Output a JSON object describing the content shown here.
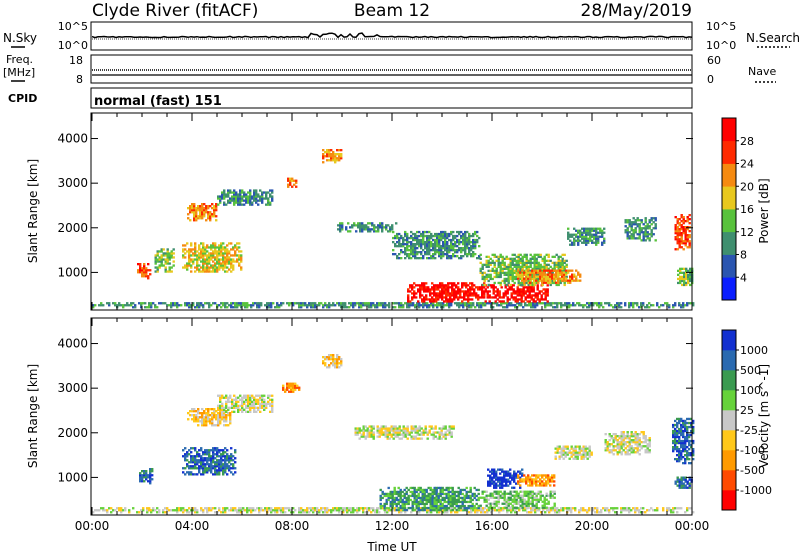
{
  "header": {
    "station": "Clyde River (fitACF)",
    "beam": "Beam 12",
    "date": "28/May/2019"
  },
  "strip_labels": {
    "nsky": "N.Sky",
    "nsearch": "N.Search",
    "freq_line1": "Freq.",
    "freq_line2": "[MHz]",
    "nave": "Nave",
    "cpid": "CPID",
    "cpid_value": "normal (fast) 151"
  },
  "strip_ticks": {
    "noise_left": [
      "10^5",
      "10^0"
    ],
    "noise_right": [
      "10^5",
      "10^0"
    ],
    "freq_left": [
      "18",
      "8"
    ],
    "nave_right": [
      "60",
      "0"
    ]
  },
  "colors": {
    "power_scale": [
      "#0a1eff",
      "#2a55b0",
      "#3f8f6f",
      "#58c23c",
      "#e8c81e",
      "#f58a10",
      "#ff2a00",
      "#ff0000"
    ],
    "velocity_scale": [
      "#ff0000",
      "#ff4a00",
      "#ff9a00",
      "#ffc81a",
      "#c8c8c8",
      "#66d23a",
      "#3a9a50",
      "#2a6ab0",
      "#1230d0"
    ],
    "ground_scatter": "#c0c0c0"
  },
  "chart_data": [
    {
      "type": "heatmap",
      "name": "power",
      "ylabel": "Slant Range [km]",
      "colorbar_label": "Power [dB]",
      "colorbar_ticks": [
        "4",
        "8",
        "12",
        "16",
        "20",
        "24",
        "28"
      ],
      "x_range_hours": [
        0,
        24
      ],
      "ylim": [
        180,
        4550
      ],
      "y_ticks": [
        "1000",
        "2000",
        "3000",
        "4000"
      ],
      "blobs": [
        {
          "t0": 0.0,
          "t1": 24.0,
          "r0": 200,
          "r1": 330,
          "level": 2
        },
        {
          "t0": 1.8,
          "t1": 2.3,
          "r0": 850,
          "r1": 1200,
          "level": 6
        },
        {
          "t0": 2.5,
          "t1": 3.3,
          "r0": 1000,
          "r1": 1500,
          "level": 3
        },
        {
          "t0": 3.6,
          "t1": 6.0,
          "r0": 1000,
          "r1": 1650,
          "level": 4
        },
        {
          "t0": 3.8,
          "t1": 5.0,
          "r0": 2150,
          "r1": 2550,
          "level": 5
        },
        {
          "t0": 5.0,
          "t1": 7.2,
          "r0": 2500,
          "r1": 2850,
          "level": 2
        },
        {
          "t0": 7.8,
          "t1": 8.2,
          "r0": 2900,
          "r1": 3100,
          "level": 5
        },
        {
          "t0": 9.2,
          "t1": 10.0,
          "r0": 3450,
          "r1": 3750,
          "level": 5
        },
        {
          "t0": 9.8,
          "t1": 12.2,
          "r0": 1900,
          "r1": 2100,
          "level": 2
        },
        {
          "t0": 12.0,
          "t1": 15.5,
          "r0": 1300,
          "r1": 1900,
          "level": 2
        },
        {
          "t0": 12.6,
          "t1": 15.7,
          "r0": 330,
          "r1": 750,
          "level": 7
        },
        {
          "t0": 15.7,
          "t1": 18.2,
          "r0": 330,
          "r1": 700,
          "level": 7
        },
        {
          "t0": 15.5,
          "t1": 19.0,
          "r0": 700,
          "r1": 1400,
          "level": 3
        },
        {
          "t0": 17.0,
          "t1": 19.5,
          "r0": 750,
          "r1": 1050,
          "level": 5
        },
        {
          "t0": 19.0,
          "t1": 20.5,
          "r0": 1600,
          "r1": 2000,
          "level": 2
        },
        {
          "t0": 21.3,
          "t1": 22.5,
          "r0": 1700,
          "r1": 2200,
          "level": 2
        },
        {
          "t0": 23.3,
          "t1": 23.9,
          "r0": 1500,
          "r1": 2300,
          "level": 6
        },
        {
          "t0": 23.4,
          "t1": 24.0,
          "r0": 700,
          "r1": 1100,
          "level": 3
        }
      ]
    },
    {
      "type": "heatmap",
      "name": "velocity",
      "ylabel": "Slant Range [km]",
      "colorbar_label": "Velocity [m s^-1]",
      "colorbar_ticks": [
        "-1000",
        "-500",
        "-100",
        "-25",
        "25",
        "100",
        "500",
        "1000"
      ],
      "x_range_hours": [
        0,
        24
      ],
      "xlabel": "Time UT",
      "x_ticks": [
        "00:00",
        "04:00",
        "08:00",
        "12:00",
        "16:00",
        "20:00",
        "00:00"
      ],
      "ylim": [
        180,
        4550
      ],
      "y_ticks": [
        "1000",
        "2000",
        "3000",
        "4000"
      ],
      "blobs": [
        {
          "t0": 0.0,
          "t1": 24.0,
          "r0": 200,
          "r1": 330,
          "level": 4
        },
        {
          "t0": 1.8,
          "t1": 2.4,
          "r0": 850,
          "r1": 1200,
          "level": 7
        },
        {
          "t0": 3.6,
          "t1": 5.7,
          "r0": 1050,
          "r1": 1650,
          "level": 7
        },
        {
          "t0": 3.8,
          "t1": 5.5,
          "r0": 2150,
          "r1": 2550,
          "level": 3
        },
        {
          "t0": 5.0,
          "t1": 7.2,
          "r0": 2450,
          "r1": 2850,
          "level": 4
        },
        {
          "t0": 7.6,
          "t1": 8.3,
          "r0": 2900,
          "r1": 3100,
          "level": 2
        },
        {
          "t0": 9.2,
          "t1": 10.0,
          "r0": 3450,
          "r1": 3750,
          "level": 3
        },
        {
          "t0": 10.5,
          "t1": 14.5,
          "r0": 1850,
          "r1": 2150,
          "level": 4
        },
        {
          "t0": 11.5,
          "t1": 15.5,
          "r0": 250,
          "r1": 750,
          "level": 6
        },
        {
          "t0": 15.5,
          "t1": 18.5,
          "r0": 300,
          "r1": 700,
          "level": 5
        },
        {
          "t0": 15.8,
          "t1": 17.2,
          "r0": 750,
          "r1": 1200,
          "level": 8
        },
        {
          "t0": 17.0,
          "t1": 18.5,
          "r0": 800,
          "r1": 1050,
          "level": 2
        },
        {
          "t0": 18.5,
          "t1": 20.0,
          "r0": 1400,
          "r1": 1700,
          "level": 4
        },
        {
          "t0": 20.5,
          "t1": 22.3,
          "r0": 1500,
          "r1": 2000,
          "level": 4
        },
        {
          "t0": 23.2,
          "t1": 24.0,
          "r0": 1300,
          "r1": 2300,
          "level": 7
        },
        {
          "t0": 23.3,
          "t1": 24.0,
          "r0": 750,
          "r1": 1000,
          "level": 7
        }
      ]
    }
  ]
}
